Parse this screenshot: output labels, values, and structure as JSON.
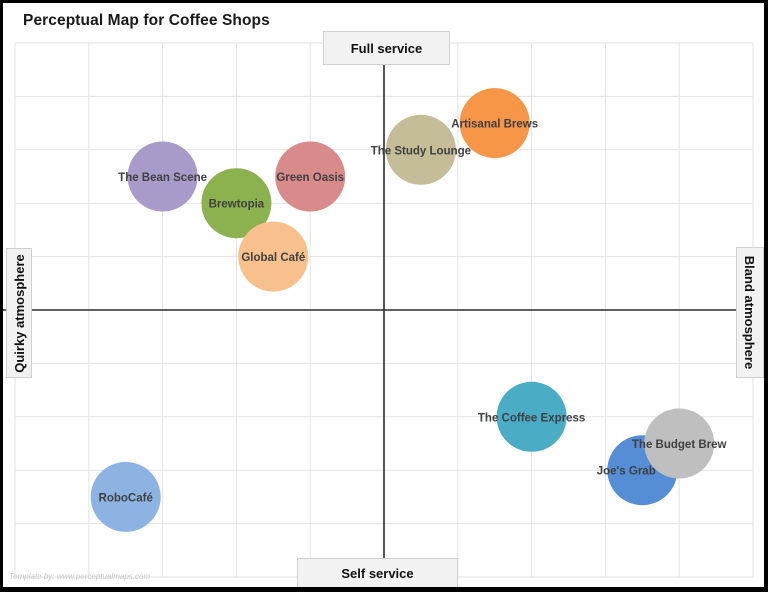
{
  "title": "Perceptual Map for Coffee Shops",
  "axes": {
    "top": "Full service",
    "bottom": "Self service",
    "left": "Quirky atmosphere",
    "right": "Bland atmosphere"
  },
  "watermark": "Template by: www.perceptualmaps.com",
  "colors": {
    "grid": "#e3e3e3",
    "axis_line": "#2b2b2b",
    "label_text": "#404040",
    "frame_border": "#000000"
  },
  "chart_data": {
    "type": "scatter",
    "subtype": "bubble",
    "title": "Perceptual Map for Coffee Shops",
    "xlabel_left": "Quirky atmosphere",
    "xlabel_right": "Bland atmosphere",
    "ylabel_top": "Full service",
    "ylabel_bottom": "Self service",
    "xlim": [
      -5,
      5
    ],
    "ylim": [
      -5,
      5
    ],
    "grid": true,
    "legend": "none (data labels on bubbles)",
    "points": [
      {
        "label": "The Bean Scene",
        "x": -3,
        "y": 2.5,
        "color": "#a99bc9"
      },
      {
        "label": "Green Oasis",
        "x": -1,
        "y": 2.5,
        "color": "#d98a8a"
      },
      {
        "label": "Brewtopia",
        "x": -2,
        "y": 2,
        "color": "#8cb24f"
      },
      {
        "label": "Global Café",
        "x": -1.5,
        "y": 1,
        "color": "#f8c08c"
      },
      {
        "label": "The Study Lounge",
        "x": 0.5,
        "y": 3,
        "color": "#c4bd97"
      },
      {
        "label": "Artisanal Brews",
        "x": 1.5,
        "y": 3.5,
        "color": "#f79646"
      },
      {
        "label": "The Coffee Express",
        "x": 2,
        "y": -2,
        "color": "#4bacc6"
      },
      {
        "label": "Joe's Grab 'n Go",
        "x": 3.5,
        "y": -3,
        "color": "#558ed5"
      },
      {
        "label": "The Budget Brew",
        "x": 4,
        "y": -2.5,
        "color": "#bfbfbf"
      },
      {
        "label": "RoboCafé",
        "x": -3.5,
        "y": -3.5,
        "color": "#8db3e2"
      }
    ]
  }
}
